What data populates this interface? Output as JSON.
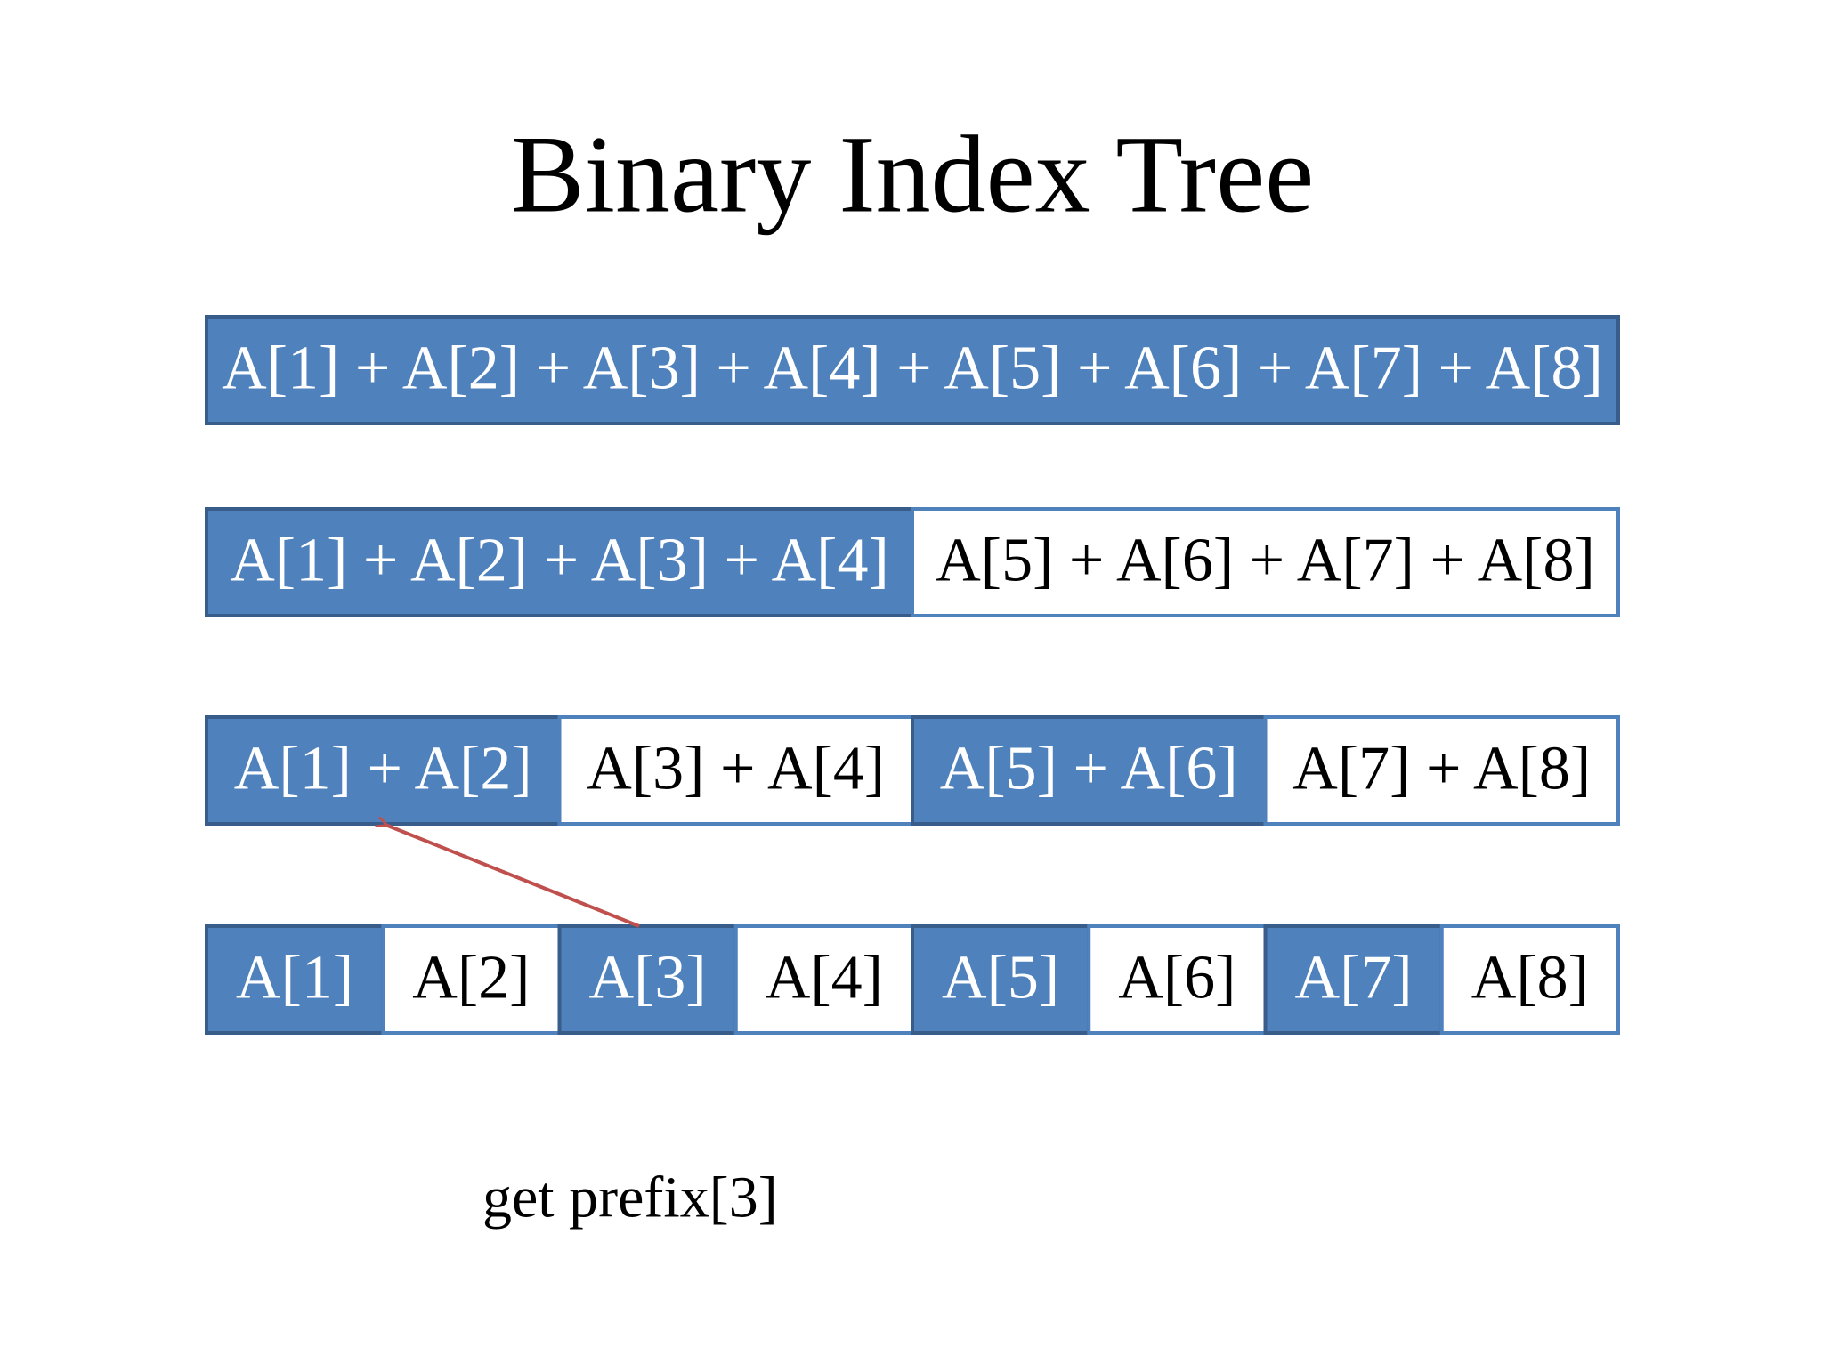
{
  "title": "Binary Index Tree",
  "rows": [
    {
      "cells": [
        {
          "label": "A[1] + A[2] + A[3] + A[4] + A[5] + A[6] + A[7] + A[8]",
          "filled": true
        }
      ]
    },
    {
      "cells": [
        {
          "label": "A[1] + A[2] + A[3] + A[4]",
          "filled": true
        },
        {
          "label": "A[5] + A[6] + A[7] + A[8]",
          "filled": false
        }
      ]
    },
    {
      "cells": [
        {
          "label": "A[1] + A[2]",
          "filled": true
        },
        {
          "label": "A[3] + A[4]",
          "filled": false
        },
        {
          "label": "A[5] + A[6]",
          "filled": true
        },
        {
          "label": "A[7] + A[8]",
          "filled": false
        }
      ]
    },
    {
      "cells": [
        {
          "label": "A[1]",
          "filled": true
        },
        {
          "label": "A[2]",
          "filled": false
        },
        {
          "label": "A[3]",
          "filled": true
        },
        {
          "label": "A[4]",
          "filled": false
        },
        {
          "label": "A[5]",
          "filled": true
        },
        {
          "label": "A[6]",
          "filled": false
        },
        {
          "label": "A[7]",
          "filled": true
        },
        {
          "label": "A[8]",
          "filled": false
        }
      ]
    }
  ],
  "caption": "get prefix[3]"
}
